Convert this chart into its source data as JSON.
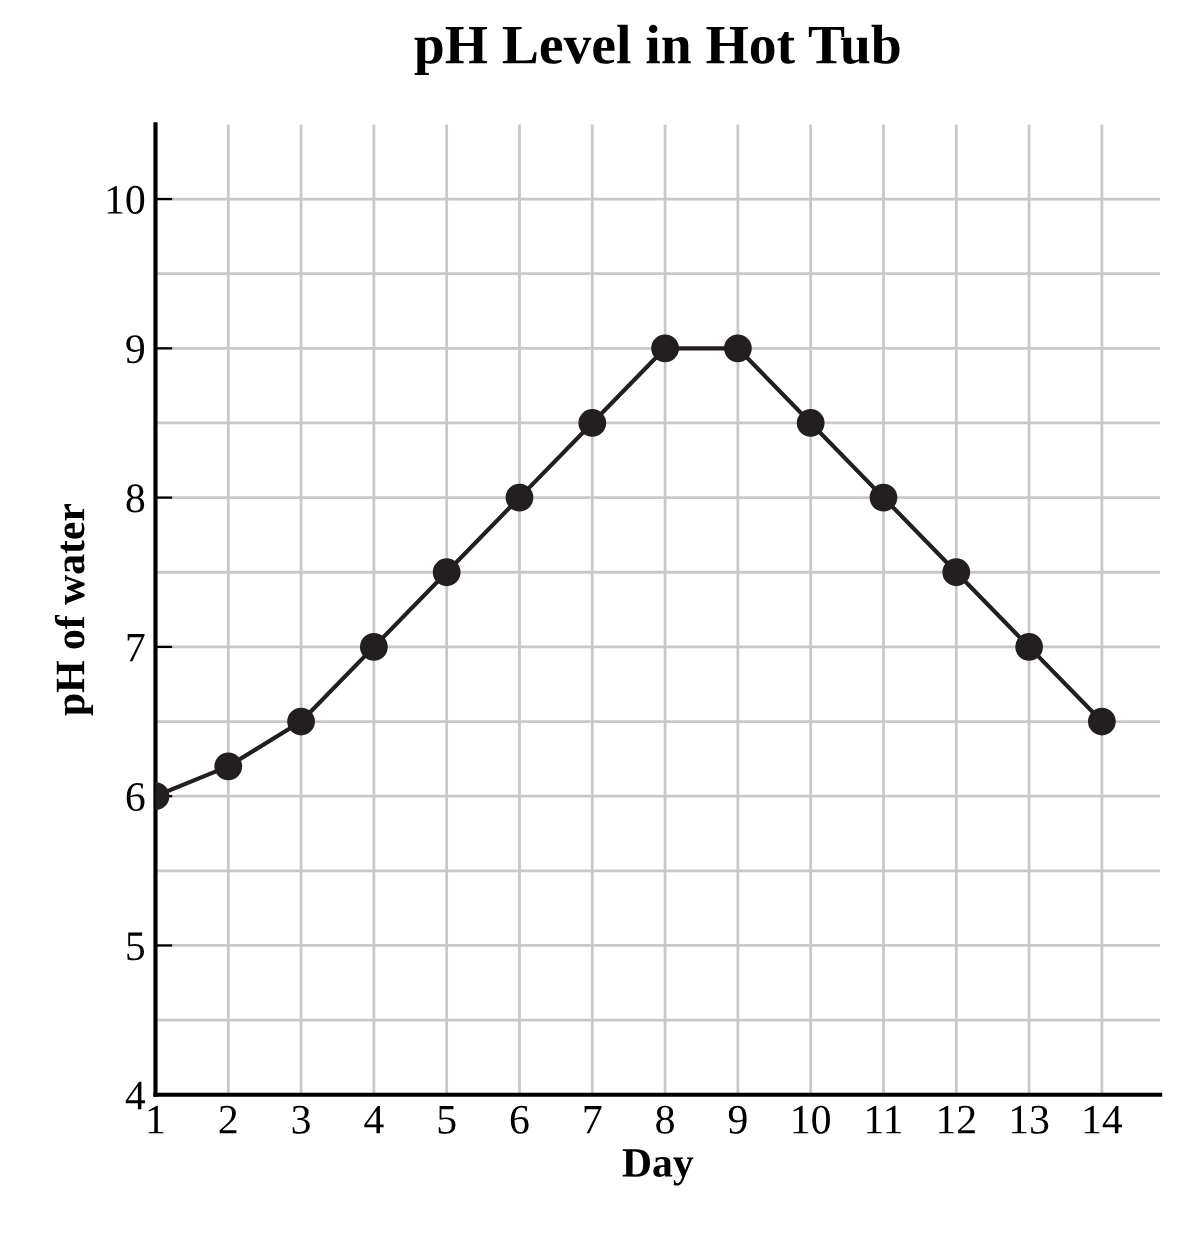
{
  "chart_data": {
    "type": "line",
    "title": "pH Level in Hot Tub",
    "xlabel": "Day",
    "ylabel": "pH of water",
    "x": [
      1,
      2,
      3,
      4,
      5,
      6,
      7,
      8,
      9,
      10,
      11,
      12,
      13,
      14
    ],
    "series": [
      {
        "color": "#231f20",
        "values": [
          6,
          6.2,
          6.5,
          7,
          7.5,
          8,
          8.5,
          9,
          9,
          8.5,
          8,
          7.5,
          7,
          6.5
        ]
      }
    ],
    "xlim": [
      1,
      14.8
    ],
    "ylim": [
      4,
      10.5
    ],
    "xticks": [
      1,
      2,
      3,
      4,
      5,
      6,
      7,
      8,
      9,
      10,
      11,
      12,
      13,
      14
    ],
    "yticks": [
      4,
      {
        "value": 4.5,
        "label": null
      },
      5,
      {
        "value": 5.5,
        "label": null
      },
      6,
      {
        "value": 6.5,
        "label": null
      },
      7,
      {
        "value": 7.5,
        "label": null
      },
      8,
      {
        "value": 8.5,
        "label": null
      },
      9,
      {
        "value": 9.5,
        "label": null
      },
      10
    ],
    "grid": true,
    "marker": "circle",
    "line_style": "solid"
  }
}
